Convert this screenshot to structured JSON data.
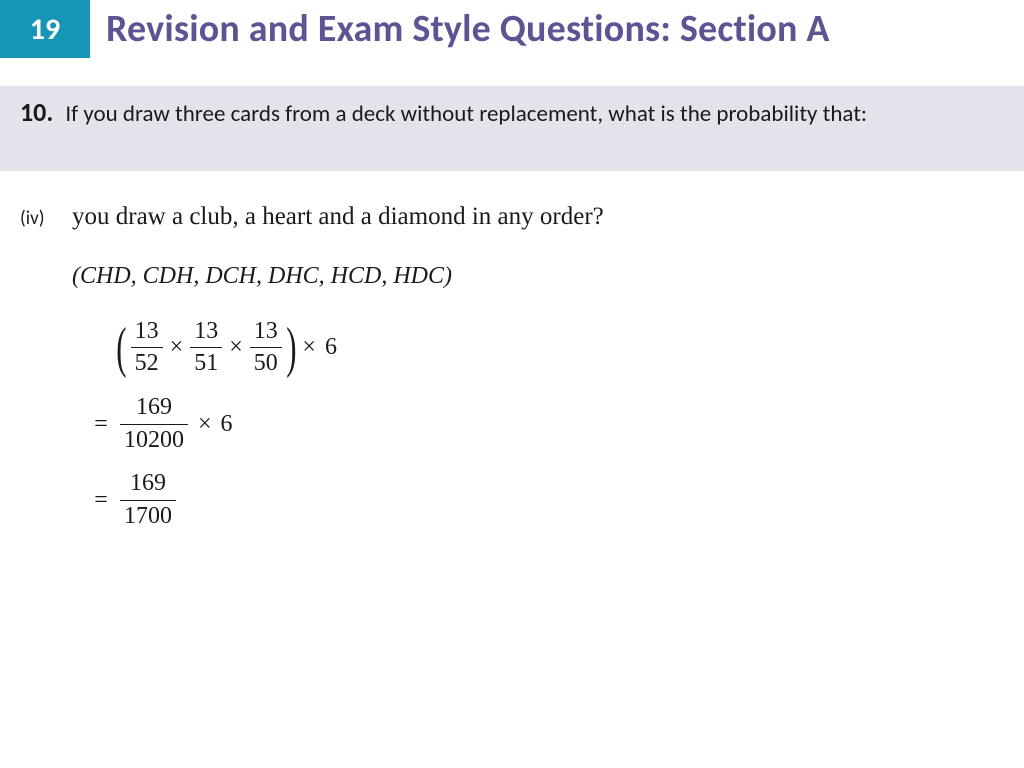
{
  "colors": {
    "badge_bg": "#1596b6",
    "title_color": "#5e5494",
    "question_bar_bg": "#e5e2ec",
    "text_color": "#1a1a1a"
  },
  "header": {
    "chapter_number": "19",
    "title": "Revision and Exam Style Questions: Section A",
    "title_fontsize": 38
  },
  "question": {
    "number": "10.",
    "text": "If you draw three cards from a deck without replacement, what is the probability that:"
  },
  "part": {
    "label": "(iv)",
    "text": "you draw a club, a heart and a diamond in any order?"
  },
  "permutations": "(CHD, CDH, DCH, DHC, HCD, HDC)",
  "math": {
    "line1": {
      "open_paren": "(",
      "close_paren": ")",
      "f1_num": "13",
      "f1_den": "52",
      "f2_num": "13",
      "f2_den": "51",
      "f3_num": "13",
      "f3_den": "50",
      "times": "×",
      "trail": "6"
    },
    "line2": {
      "eq": "=",
      "f_num": "169",
      "f_den": "10200",
      "times": "×",
      "trail": "6"
    },
    "line3": {
      "eq": "=",
      "f_num": "169",
      "f_den": "1700"
    }
  }
}
